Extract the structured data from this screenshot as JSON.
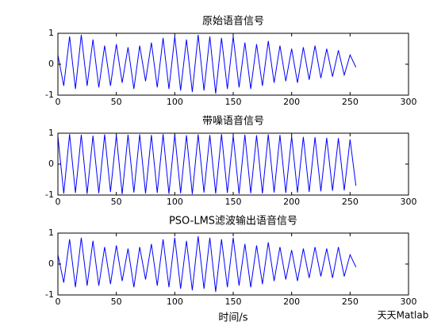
{
  "chart_data": [
    {
      "type": "line",
      "title": "原始语音信号",
      "x": [
        0,
        5,
        10,
        15,
        20,
        25,
        30,
        35,
        40,
        45,
        50,
        55,
        60,
        65,
        70,
        75,
        80,
        85,
        90,
        95,
        100,
        105,
        110,
        115,
        120,
        125,
        130,
        135,
        140,
        145,
        150,
        155,
        160,
        165,
        170,
        175,
        180,
        185,
        190,
        195,
        200,
        205,
        210,
        215,
        220,
        225,
        230,
        235,
        240,
        245,
        250,
        255
      ],
      "series": [
        {
          "color": "#0000ff",
          "values": [
            0.3,
            -0.7,
            0.9,
            -0.8,
            0.95,
            -0.7,
            0.8,
            -0.75,
            0.6,
            -0.7,
            0.65,
            -0.6,
            0.55,
            -0.8,
            0.6,
            -0.55,
            0.7,
            -0.75,
            0.85,
            -0.8,
            0.9,
            -0.85,
            0.8,
            -0.9,
            0.95,
            -0.85,
            0.9,
            -0.95,
            0.85,
            -0.8,
            0.9,
            -0.75,
            0.7,
            -0.8,
            0.65,
            -0.7,
            0.75,
            -0.6,
            0.6,
            -0.55,
            0.5,
            -0.6,
            0.55,
            -0.5,
            0.6,
            -0.45,
            0.5,
            -0.4,
            0.45,
            -0.35,
            0.3,
            -0.1
          ]
        }
      ],
      "xlim": [
        0,
        300
      ],
      "ylim": [
        -1,
        1
      ],
      "xticks": [
        0,
        50,
        100,
        150,
        200,
        250,
        300
      ],
      "yticks": [
        -1,
        0,
        1
      ]
    },
    {
      "type": "line",
      "title": "带噪语音信号",
      "x": [
        0,
        5,
        10,
        15,
        20,
        25,
        30,
        35,
        40,
        45,
        50,
        55,
        60,
        65,
        70,
        75,
        80,
        85,
        90,
        95,
        100,
        105,
        110,
        115,
        120,
        125,
        130,
        135,
        140,
        145,
        150,
        155,
        160,
        165,
        170,
        175,
        180,
        185,
        190,
        195,
        200,
        205,
        210,
        215,
        220,
        225,
        230,
        235,
        240,
        245,
        250,
        255
      ],
      "series": [
        {
          "color": "#0000ff",
          "values": [
            0.9,
            -0.95,
            0.97,
            -0.93,
            0.95,
            -0.96,
            0.92,
            -0.94,
            0.96,
            -0.9,
            0.93,
            -0.97,
            0.95,
            -0.92,
            0.96,
            -0.95,
            0.94,
            -0.93,
            0.97,
            -0.96,
            0.95,
            -0.94,
            0.93,
            -0.97,
            0.96,
            -0.92,
            0.94,
            -0.95,
            0.97,
            -0.93,
            0.92,
            -0.96,
            0.95,
            -0.94,
            0.93,
            -0.95,
            0.96,
            -0.92,
            0.94,
            -0.93,
            0.9,
            -0.92,
            0.88,
            -0.9,
            0.87,
            -0.88,
            0.85,
            -0.86,
            0.84,
            -0.85,
            0.8,
            -0.7
          ]
        }
      ],
      "xlim": [
        0,
        300
      ],
      "ylim": [
        -1,
        1
      ],
      "xticks": [
        0,
        50,
        100,
        150,
        200,
        250,
        300
      ],
      "yticks": [
        -1,
        0,
        1
      ]
    },
    {
      "type": "line",
      "title": "PSO-LMS滤波输出语音信号",
      "xlabel": "时间/s",
      "x": [
        0,
        5,
        10,
        15,
        20,
        25,
        30,
        35,
        40,
        45,
        50,
        55,
        60,
        65,
        70,
        75,
        80,
        85,
        90,
        95,
        100,
        105,
        110,
        115,
        120,
        125,
        130,
        135,
        140,
        145,
        150,
        155,
        160,
        165,
        170,
        175,
        180,
        185,
        190,
        195,
        200,
        205,
        210,
        215,
        220,
        225,
        230,
        235,
        240,
        245,
        250,
        255
      ],
      "series": [
        {
          "color": "#0000ff",
          "values": [
            0.3,
            -0.6,
            0.8,
            -0.75,
            0.85,
            -0.7,
            0.75,
            -0.7,
            0.55,
            -0.65,
            0.6,
            -0.55,
            0.5,
            -0.75,
            0.55,
            -0.5,
            0.65,
            -0.7,
            0.8,
            -0.75,
            0.85,
            -0.8,
            0.75,
            -0.85,
            0.9,
            -0.8,
            0.85,
            -0.9,
            0.8,
            -0.75,
            0.85,
            -0.7,
            0.65,
            -0.75,
            0.6,
            -0.65,
            0.7,
            -0.55,
            0.55,
            -0.5,
            0.45,
            -0.55,
            0.5,
            -0.45,
            0.55,
            -0.4,
            0.5,
            -0.45,
            0.55,
            -0.4,
            0.3,
            -0.1
          ]
        }
      ],
      "xlim": [
        0,
        300
      ],
      "ylim": [
        -1,
        1
      ],
      "xticks": [
        0,
        50,
        100,
        150,
        200,
        250,
        300
      ],
      "yticks": [
        -1,
        0,
        1
      ]
    }
  ],
  "watermark": "天天Matlab"
}
